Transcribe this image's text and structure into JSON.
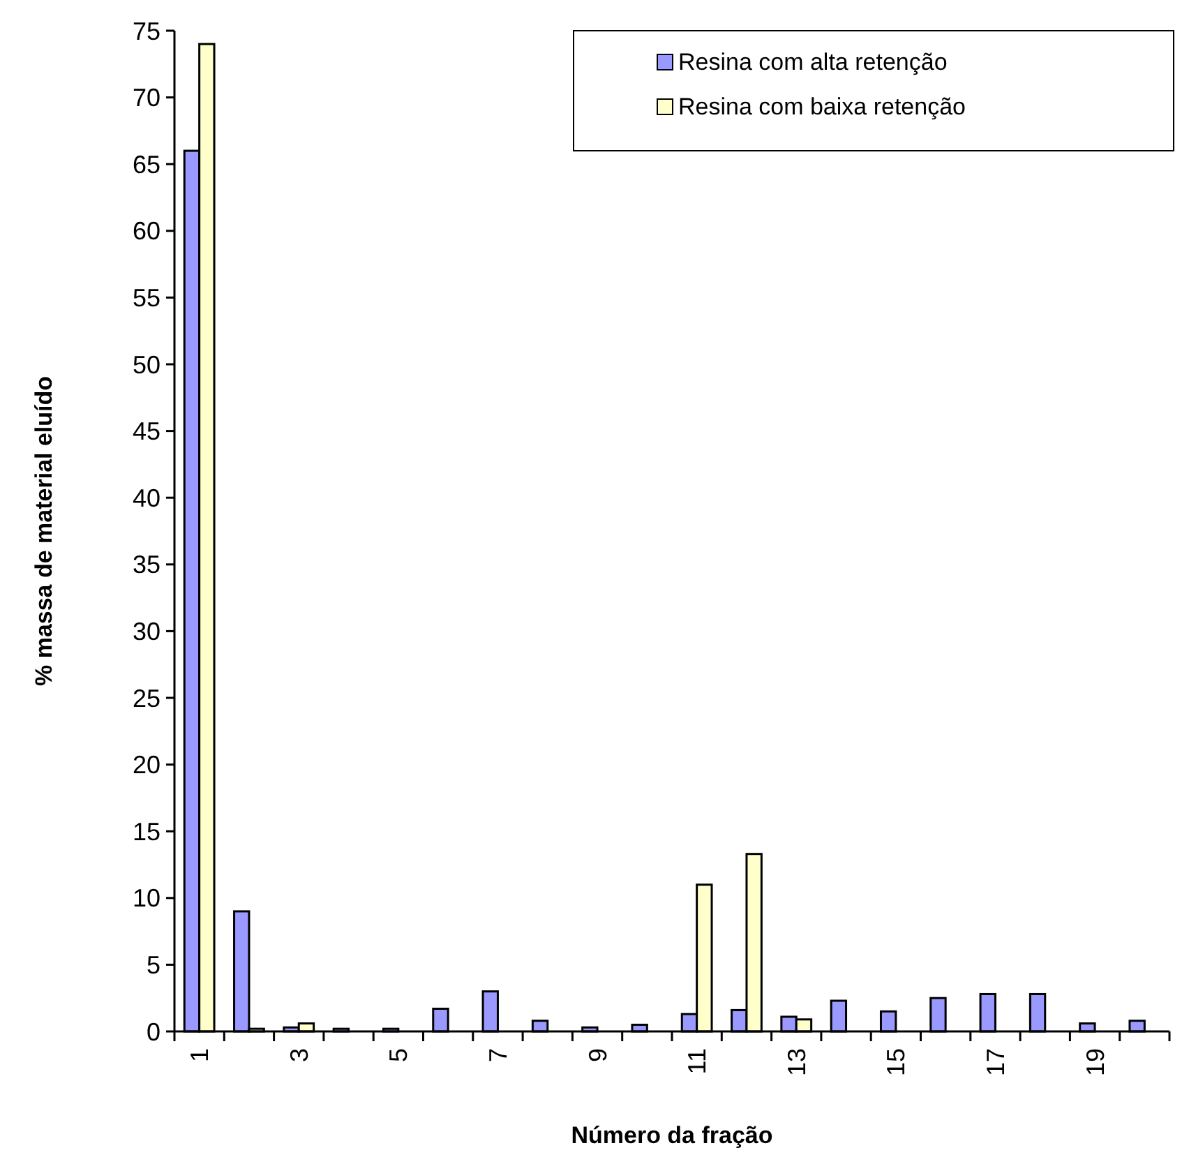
{
  "chart_data": {
    "type": "bar",
    "xlabel": "Número da fração",
    "ylabel": "% massa de material eluído",
    "categories": [
      "1",
      null,
      "3",
      null,
      "5",
      null,
      "7",
      null,
      "9",
      null,
      "11",
      null,
      "13",
      null,
      "15",
      null,
      "17",
      null,
      "19",
      null
    ],
    "series": [
      {
        "name": "Resina com alta retenção",
        "color": "#9999ff",
        "values": [
          66,
          9,
          0.3,
          0.2,
          0.2,
          1.7,
          3,
          0.8,
          0.3,
          0.5,
          1.3,
          1.6,
          1.1,
          2.3,
          1.5,
          2.5,
          2.8,
          2.8,
          0.6,
          0.8
        ]
      },
      {
        "name": "Resina com baixa retenção",
        "color": "#ffffcc",
        "values": [
          74,
          0.2,
          0.6,
          0,
          0,
          0,
          0,
          0,
          0,
          0,
          11,
          13.3,
          0.9,
          0,
          0,
          0,
          0,
          0,
          0,
          0
        ]
      }
    ],
    "ylim": [
      0,
      75
    ],
    "yticks": [
      0,
      5,
      10,
      15,
      20,
      25,
      30,
      35,
      40,
      45,
      50,
      55,
      60,
      65,
      70,
      75
    ],
    "grid": false,
    "legend": "top right"
  }
}
